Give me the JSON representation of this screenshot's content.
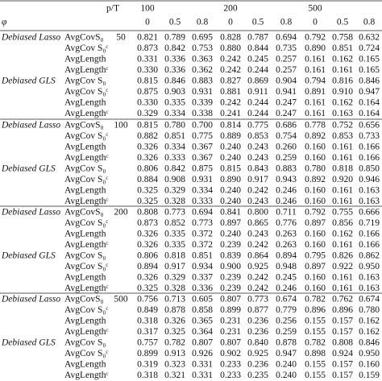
{
  "header": {
    "p_label": "p/T",
    "T": [
      "100",
      "200",
      "500"
    ],
    "phi_label": "φ",
    "phi": [
      "0",
      "0.5",
      "0.8",
      "0",
      "0.5",
      "0.8",
      "0",
      "0.5",
      "0.8"
    ]
  },
  "blocks": [
    {
      "p": "50",
      "groups": [
        {
          "method": "Debiased Lasso",
          "rows": [
            {
              "metric": "AvgCovS₀",
              "values": [
                "0.821",
                "0.789",
                "0.695",
                "0.828",
                "0.787",
                "0.694",
                "0.792",
                "0.758",
                "0.632"
              ]
            },
            {
              "metric": "AvgCov S₀ᶜ",
              "values": [
                "0.873",
                "0.842",
                "0.753",
                "0.880",
                "0.844",
                "0.735",
                "0.890",
                "0.851",
                "0.724"
              ]
            },
            {
              "metric": "AvgLength",
              "values": [
                "0.331",
                "0.336",
                "0.363",
                "0.242",
                "0.245",
                "0.257",
                "0.161",
                "0.162",
                "0.165"
              ]
            },
            {
              "metric": "AvgLengthᶜ",
              "values": [
                "0.330",
                "0.336",
                "0.362",
                "0.242",
                "0.244",
                "0.257",
                "0.161",
                "0.161",
                "0.165"
              ]
            }
          ]
        },
        {
          "method": "Debiased GLS",
          "rows": [
            {
              "metric": "AvgCov S₀",
              "values": [
                "0.815",
                "0.846",
                "0.883",
                "0.827",
                "0.869",
                "0.904",
                "0.794",
                "0.816",
                "0.846"
              ]
            },
            {
              "metric": "AvgCov S₀ᶜ",
              "values": [
                "0.875",
                "0.903",
                "0.931",
                "0.881",
                "0.911",
                "0.941",
                "0.891",
                "0.910",
                "0.947"
              ]
            },
            {
              "metric": "AvgLength",
              "values": [
                "0.330",
                "0.335",
                "0.339",
                "0.242",
                "0.244",
                "0.247",
                "0.161",
                "0.162",
                "0.164"
              ]
            },
            {
              "metric": "AvgLengthᶜ",
              "values": [
                "0.329",
                "0.334",
                "0.338",
                "0.241",
                "0.244",
                "0.247",
                "0.161",
                "0.163",
                "0.164"
              ]
            }
          ]
        }
      ]
    },
    {
      "p": "100",
      "groups": [
        {
          "method": "Debiased Lasso",
          "rows": [
            {
              "metric": "AvgCovS₀",
              "values": [
                "0.815",
                "0.780",
                "0.700",
                "0.814",
                "0.775",
                "0.686",
                "0.778",
                "0.752",
                "0.656"
              ]
            },
            {
              "metric": "AvgCov S₀ᶜ",
              "values": [
                "0.882",
                "0.851",
                "0.775",
                "0.889",
                "0.853",
                "0.754",
                "0.892",
                "0.853",
                "0.733"
              ]
            },
            {
              "metric": "AvgLength",
              "values": [
                "0.326",
                "0.334",
                "0.367",
                "0.240",
                "0.243",
                "0.260",
                "0.160",
                "0.161",
                "0.166"
              ]
            },
            {
              "metric": "AvgLengthᶜ",
              "values": [
                "0.326",
                "0.333",
                "0.367",
                "0.240",
                "0.243",
                "0.259",
                "0.160",
                "0.161",
                "0.166"
              ]
            }
          ]
        },
        {
          "method": "Debiased GLS",
          "rows": [
            {
              "metric": "AvgCov S₀",
              "values": [
                "0.806",
                "0.842",
                "0.875",
                "0.815",
                "0.843",
                "0.883",
                "0.780",
                "0.818",
                "0.850"
              ]
            },
            {
              "metric": "AvgCov S₀ᶜ",
              "values": [
                "0.884",
                "0.908",
                "0.931",
                "0.890",
                "0.917",
                "0.943",
                "0.892",
                "0.920",
                "0.946"
              ]
            },
            {
              "metric": "AvgLength",
              "values": [
                "0.325",
                "0.329",
                "0.334",
                "0.240",
                "0.242",
                "0.246",
                "0.160",
                "0.161",
                "0.163"
              ]
            },
            {
              "metric": "AvgLengthᶜ",
              "values": [
                "0.325",
                "0.328",
                "0.333",
                "0.240",
                "0.243",
                "0.246",
                "0.160",
                "0.161",
                "0.163"
              ]
            }
          ]
        }
      ]
    },
    {
      "p": "200",
      "groups": [
        {
          "method": "Debiased Lasso",
          "rows": [
            {
              "metric": "AvgCovS₀",
              "values": [
                "0.808",
                "0.773",
                "0.694",
                "0.841",
                "0.800",
                "0.711",
                "0.792",
                "0.755",
                "0.666"
              ]
            },
            {
              "metric": "AvgCov S₀ᶜ",
              "values": [
                "0.873",
                "0.852",
                "0.773",
                "0.897",
                "0.865",
                "0.776",
                "0.897",
                "0.856",
                "0.719"
              ]
            },
            {
              "metric": "AvgLength",
              "values": [
                "0.326",
                "0.335",
                "0.372",
                "0.240",
                "0.243",
                "0.263",
                "0.160",
                "0.162",
                "0.166"
              ]
            },
            {
              "metric": "AvgLengthᶜ",
              "values": [
                "0.326",
                "0.335",
                "0.372",
                "0.239",
                "0.242",
                "0.263",
                "0.160",
                "0.161",
                "0.166"
              ]
            }
          ]
        },
        {
          "method": "Debiased GLS",
          "rows": [
            {
              "metric": "AvgCov S₀",
              "values": [
                "0.806",
                "0.818",
                "0.851",
                "0.839",
                "0.864",
                "0.894",
                "0.795",
                "0.826",
                "0.862"
              ]
            },
            {
              "metric": "AvgCov S₀ᶜ",
              "values": [
                "0.894",
                "0.917",
                "0.934",
                "0.900",
                "0.925",
                "0.948",
                "0.897",
                "0.922",
                "0.950"
              ]
            },
            {
              "metric": "AvgLength",
              "values": [
                "0.326",
                "0.329",
                "0.337",
                "0.239",
                "0.242",
                "0.245",
                "0.160",
                "0.161",
                "0.163"
              ]
            },
            {
              "metric": "AvgLengthᶜ",
              "values": [
                "0.325",
                "0.328",
                "0.336",
                "0.239",
                "0.242",
                "0.246",
                "0.160",
                "0.161",
                "0.163"
              ]
            }
          ]
        }
      ]
    },
    {
      "p": "500",
      "groups": [
        {
          "method": "Debiased Lasso",
          "rows": [
            {
              "metric": "AvgCovS₀",
              "values": [
                "0.756",
                "0.713",
                "0.605",
                "0.807",
                "0.773",
                "0.674",
                "0.782",
                "0.762",
                "0.674"
              ]
            },
            {
              "metric": "AvgCov S₀ᶜ",
              "values": [
                "0.849",
                "0.878",
                "0.858",
                "0.899",
                "0.877",
                "0.779",
                "0.896",
                "0.896",
                "0.780"
              ]
            },
            {
              "metric": "AvgLength",
              "values": [
                "0.318",
                "0.326",
                "0.365",
                "0.231",
                "0.236",
                "0.256",
                "0.155",
                "0.157",
                "0.162"
              ]
            },
            {
              "metric": "AvgLengthᶜ",
              "values": [
                "0.317",
                "0.325",
                "0.364",
                "0.231",
                "0.236",
                "0.259",
                "0.155",
                "0.157",
                "0.162"
              ]
            }
          ]
        },
        {
          "method": "Debiased GLS",
          "rows": [
            {
              "metric": "AvgCov S₀",
              "values": [
                "0.757",
                "0.782",
                "0.807",
                "0.807",
                "0.840",
                "0.878",
                "0.782",
                "0.808",
                "0.846"
              ]
            },
            {
              "metric": "AvgCov S₀ᶜ",
              "values": [
                "0.899",
                "0.913",
                "0.926",
                "0.902",
                "0.925",
                "0.947",
                "0.898",
                "0.924",
                "0.950"
              ]
            },
            {
              "metric": "AvgLength",
              "values": [
                "0.319",
                "0.323",
                "0.331",
                "0.233",
                "0.236",
                "0.240",
                "0.155",
                "0.157",
                "0.160"
              ]
            },
            {
              "metric": "AvgLengthᶜ",
              "values": [
                "0.318",
                "0.321",
                "0.331",
                "0.233",
                "0.235",
                "0.240",
                "0.155",
                "0.157",
                "0.159"
              ]
            }
          ]
        }
      ]
    }
  ]
}
